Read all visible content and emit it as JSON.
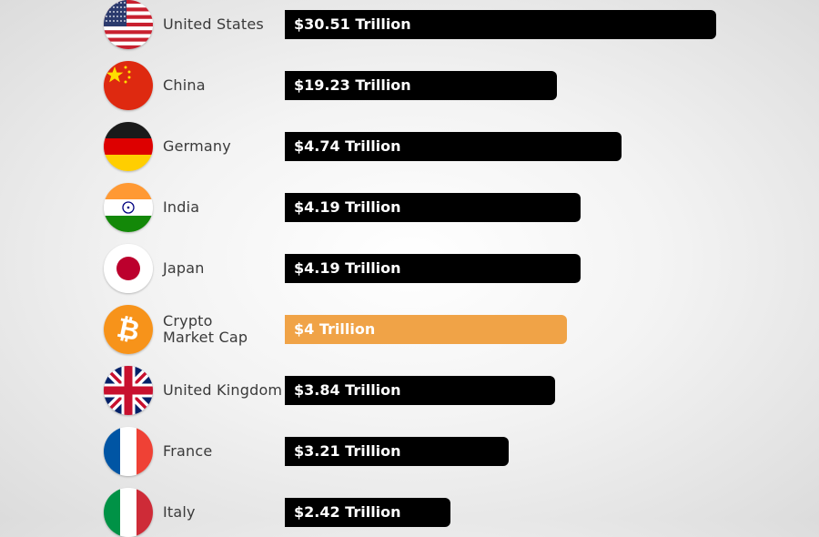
{
  "chart_data": {
    "type": "bar",
    "orientation": "horizontal",
    "categories": [
      "United States",
      "China",
      "Germany",
      "India",
      "Japan",
      "Crypto Market Cap",
      "United Kingdom",
      "France",
      "Italy"
    ],
    "category_lines": [
      [
        "United States"
      ],
      [
        "China"
      ],
      [
        "Germany"
      ],
      [
        "India"
      ],
      [
        "Japan"
      ],
      [
        "Crypto",
        "Market Cap"
      ],
      [
        "United Kingdom"
      ],
      [
        "France"
      ],
      [
        "Italy"
      ]
    ],
    "values": [
      30.51,
      19.23,
      4.74,
      4.19,
      4.19,
      4,
      3.84,
      3.21,
      2.42
    ],
    "value_labels": [
      "$30.51 Trillion",
      "$19.23 Trillion",
      "$4.74 Trillion",
      "$4.19 Trillion",
      "$4.19 Trillion",
      "$4 Trillion",
      "$3.84 Trillion",
      "$3.21 Trillion",
      "$2.42 Trillion"
    ],
    "flags": [
      "us-flag-icon",
      "china-flag-icon",
      "germany-flag-icon",
      "india-flag-icon",
      "japan-flag-icon",
      "bitcoin-icon",
      "uk-flag-icon",
      "france-flag-icon",
      "italy-flag-icon"
    ],
    "bar_colors": [
      "#000000",
      "#000000",
      "#000000",
      "#000000",
      "#000000",
      "#f0a347",
      "#000000",
      "#000000",
      "#000000"
    ],
    "title": "",
    "xlabel": "",
    "ylabel": "",
    "grid": false,
    "legend": "none"
  }
}
